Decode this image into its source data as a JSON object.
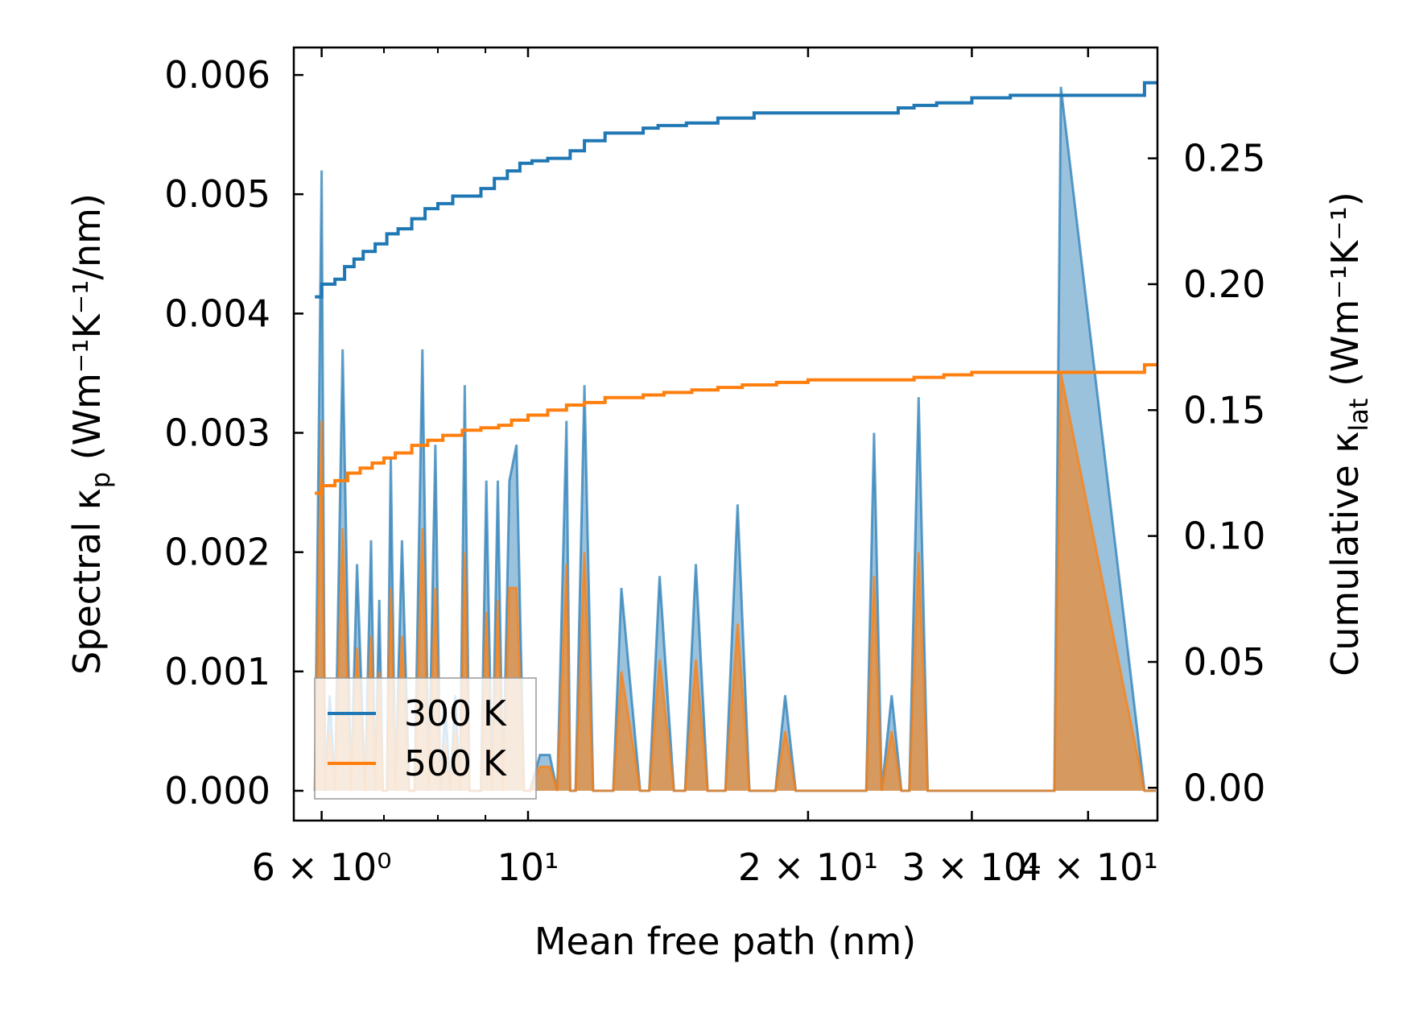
{
  "chart_data": {
    "type": "line",
    "xscale": "log",
    "xlim": [
      5.6,
      47.5
    ],
    "xlabel": "Mean free path (nm)",
    "ylabel_left_text": "Spectral κ",
    "ylabel_left_sub": "p",
    "ylabel_left_unit": " (Wm⁻¹K⁻¹/nm)",
    "ylabel_right_text": "Cumulative κ",
    "ylabel_right_sub": "lat",
    "ylabel_right_unit": " (Wm⁻¹K⁻¹)",
    "ylim_left": [
      -0.00025,
      0.00623
    ],
    "ylim_right": [
      -0.013,
      0.294
    ],
    "x_ticks": [
      {
        "value": 6,
        "label": "6 × 10⁰"
      },
      {
        "value": 10,
        "label": "10¹"
      },
      {
        "value": 20,
        "label": "2 × 10¹"
      },
      {
        "value": 30,
        "label": "3 × 10¹"
      },
      {
        "value": 40,
        "label": "4 × 10¹"
      }
    ],
    "x_minor_ticks": [
      7,
      8,
      9
    ],
    "y_left_ticks": [
      {
        "value": 0.0,
        "label": "0.000"
      },
      {
        "value": 0.001,
        "label": "0.001"
      },
      {
        "value": 0.002,
        "label": "0.002"
      },
      {
        "value": 0.003,
        "label": "0.003"
      },
      {
        "value": 0.004,
        "label": "0.004"
      },
      {
        "value": 0.005,
        "label": "0.005"
      },
      {
        "value": 0.006,
        "label": "0.006"
      }
    ],
    "y_right_ticks": [
      {
        "value": 0.0,
        "label": "0.00"
      },
      {
        "value": 0.05,
        "label": "0.05"
      },
      {
        "value": 0.1,
        "label": "0.10"
      },
      {
        "value": 0.15,
        "label": "0.15"
      },
      {
        "value": 0.2,
        "label": "0.20"
      },
      {
        "value": 0.25,
        "label": "0.25"
      }
    ],
    "legend": {
      "location": "lower-left",
      "entries": [
        "300 K",
        "500 K"
      ]
    },
    "series": [
      {
        "name": "300 K",
        "color": "#1f77b4",
        "spectral": {
          "x": [
            5.9,
            6.0,
            6.05,
            6.12,
            6.2,
            6.32,
            6.45,
            6.55,
            6.68,
            6.78,
            6.85,
            6.92,
            6.98,
            7.05,
            7.12,
            7.2,
            7.32,
            7.45,
            7.55,
            7.7,
            7.82,
            7.95,
            8.05,
            8.15,
            8.25,
            8.35,
            8.45,
            8.55,
            8.65,
            8.75,
            8.82,
            8.9,
            9.02,
            9.15,
            9.28,
            9.4,
            9.55,
            9.72,
            9.9,
            10.05,
            10.3,
            10.55,
            10.75,
            11.0,
            11.1,
            11.25,
            11.5,
            11.75,
            12.05,
            12.35,
            12.6,
            13.2,
            13.5,
            13.85,
            14.35,
            14.75,
            15.15,
            15.6,
            16.3,
            16.8,
            17.3,
            18.0,
            18.45,
            18.9,
            19.4,
            23.1,
            23.55,
            24.0,
            24.6,
            25.2,
            25.7,
            26.3,
            26.9,
            29.3,
            29.85,
            30.4,
            31.0,
            36.8,
            37.4,
            46.0,
            46.4,
            46.9,
            47.3
          ],
          "y": [
            0.0,
            0.0052,
            0.0,
            0.0008,
            0.0,
            0.0037,
            0.0,
            0.0019,
            0.0,
            0.0021,
            0.0,
            0.0016,
            0.0,
            0.0,
            0.0028,
            0.0,
            0.0021,
            0.0,
            0.0,
            0.0037,
            0.0,
            0.0029,
            0.0,
            0.0007,
            0.0,
            0.0008,
            0.0,
            0.0034,
            0.0,
            0.0,
            0.0,
            0.0,
            0.0026,
            0.0,
            0.0026,
            0.0,
            0.0026,
            0.0029,
            0.0,
            0.0,
            0.0003,
            0.0003,
            0.0,
            0.0031,
            0.0,
            0.0,
            0.0034,
            0.0,
            0.0,
            0.0,
            0.0017,
            0.0,
            0.0,
            0.0018,
            0.0,
            0.0,
            0.0019,
            0.0,
            0.0,
            0.0024,
            0.0,
            0.0,
            0.0,
            0.0008,
            0.0,
            0.0,
            0.003,
            0.0,
            0.0008,
            0.0,
            0.0,
            0.0033,
            0.0,
            0.0,
            0.0,
            0.0,
            0.0,
            0.0,
            0.0059,
            0.0,
            0.0,
            0.0,
            0.0
          ]
        },
        "cumulative": {
          "x": [
            5.9,
            6.0,
            6.2,
            6.35,
            6.5,
            6.65,
            6.85,
            7.05,
            7.25,
            7.5,
            7.75,
            8.0,
            8.3,
            8.6,
            8.9,
            9.2,
            9.5,
            9.8,
            10.1,
            10.5,
            11.1,
            11.5,
            12.1,
            13.3,
            13.8,
            14.8,
            16.0,
            17.5,
            19.0,
            22.5,
            24.0,
            25.0,
            26.0,
            27.5,
            30.0,
            33.0,
            37.0,
            40.0,
            44.0,
            46.0,
            47.5
          ],
          "y": [
            0.195,
            0.2,
            0.202,
            0.207,
            0.21,
            0.213,
            0.216,
            0.22,
            0.222,
            0.226,
            0.23,
            0.232,
            0.235,
            0.235,
            0.238,
            0.242,
            0.245,
            0.248,
            0.249,
            0.25,
            0.253,
            0.257,
            0.26,
            0.262,
            0.263,
            0.264,
            0.266,
            0.268,
            0.268,
            0.268,
            0.268,
            0.27,
            0.271,
            0.272,
            0.274,
            0.275,
            0.275,
            0.275,
            0.275,
            0.28,
            0.28
          ]
        }
      },
      {
        "name": "500 K",
        "color": "#ff7f0e",
        "spectral": {
          "x": [
            5.9,
            6.0,
            6.05,
            6.12,
            6.2,
            6.32,
            6.45,
            6.55,
            6.68,
            6.78,
            6.85,
            6.92,
            6.98,
            7.05,
            7.12,
            7.2,
            7.32,
            7.45,
            7.55,
            7.7,
            7.82,
            7.95,
            8.05,
            8.15,
            8.25,
            8.35,
            8.45,
            8.55,
            8.65,
            8.75,
            8.82,
            8.9,
            9.02,
            9.15,
            9.28,
            9.4,
            9.55,
            9.72,
            9.9,
            10.05,
            10.3,
            10.55,
            10.75,
            11.0,
            11.1,
            11.25,
            11.5,
            11.75,
            12.05,
            12.35,
            12.6,
            13.2,
            13.5,
            13.85,
            14.35,
            14.75,
            15.15,
            15.6,
            16.3,
            16.8,
            17.3,
            18.0,
            18.45,
            18.9,
            19.4,
            23.1,
            23.55,
            24.0,
            24.6,
            25.2,
            25.7,
            26.3,
            26.9,
            29.3,
            29.85,
            30.4,
            31.0,
            36.8,
            37.4,
            46.0,
            46.4,
            46.9,
            47.3
          ],
          "y": [
            0.0,
            0.0031,
            0.0,
            0.0005,
            0.0,
            0.0022,
            0.0,
            0.0012,
            0.0,
            0.0013,
            0.0,
            0.001,
            0.0,
            0.0,
            0.0017,
            0.0,
            0.0013,
            0.0,
            0.0,
            0.0022,
            0.0,
            0.0017,
            0.0,
            0.0004,
            0.0,
            0.0005,
            0.0,
            0.002,
            0.0,
            0.0,
            0.0,
            0.0,
            0.0015,
            0.0,
            0.0016,
            0.0,
            0.0017,
            0.0017,
            0.0,
            0.0,
            0.0002,
            0.0002,
            0.0,
            0.0019,
            0.0,
            0.0,
            0.002,
            0.0,
            0.0,
            0.0,
            0.001,
            0.0,
            0.0,
            0.0011,
            0.0,
            0.0,
            0.0011,
            0.0,
            0.0,
            0.0014,
            0.0,
            0.0,
            0.0,
            0.0005,
            0.0,
            0.0,
            0.0018,
            0.0,
            0.0005,
            0.0,
            0.0,
            0.002,
            0.0,
            0.0,
            0.0,
            0.0,
            0.0,
            0.0,
            0.0035,
            0.0,
            0.0,
            0.0,
            0.0
          ]
        },
        "cumulative": {
          "x": [
            5.9,
            6.0,
            6.2,
            6.4,
            6.6,
            6.8,
            7.0,
            7.2,
            7.5,
            7.8,
            8.1,
            8.5,
            8.9,
            9.3,
            9.6,
            10.0,
            10.5,
            11.0,
            11.5,
            12.1,
            13.3,
            14.0,
            15.0,
            16.0,
            17.0,
            18.5,
            20.0,
            22.0,
            24.0,
            26.0,
            28.0,
            30.0,
            33.0,
            40.0,
            46.0,
            47.5
          ],
          "y": [
            0.117,
            0.12,
            0.122,
            0.125,
            0.127,
            0.129,
            0.131,
            0.133,
            0.136,
            0.138,
            0.14,
            0.142,
            0.143,
            0.144,
            0.146,
            0.148,
            0.15,
            0.152,
            0.153,
            0.155,
            0.156,
            0.157,
            0.158,
            0.159,
            0.16,
            0.161,
            0.162,
            0.162,
            0.162,
            0.163,
            0.164,
            0.165,
            0.165,
            0.165,
            0.168,
            0.168
          ]
        }
      }
    ]
  }
}
